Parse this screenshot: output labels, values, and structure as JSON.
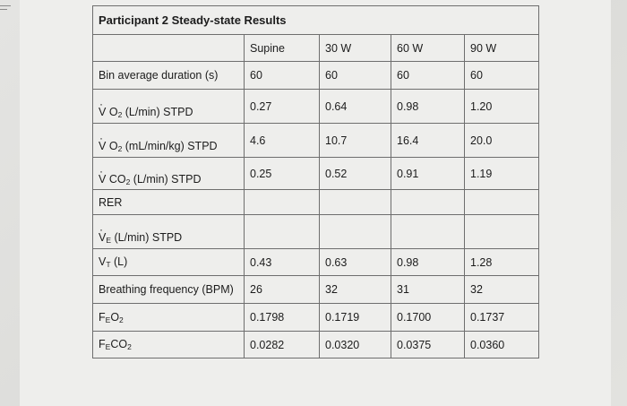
{
  "table": {
    "title": "Participant 2 Steady-state Results",
    "columns": [
      "Supine",
      "30 W",
      "60 W",
      "90 W"
    ],
    "rows": [
      {
        "label": "Bin average duration (s)",
        "values": [
          "60",
          "60",
          "60",
          "60"
        ]
      },
      {
        "label_v": "V",
        "label_gas": "O",
        "label_sub": "2",
        "label_rest": " (L/min) STPD",
        "values": [
          "0.27",
          "0.64",
          "0.98",
          "1.20"
        ]
      },
      {
        "label_v": "V",
        "label_gas": "O",
        "label_sub": "2",
        "label_rest": " (mL/min/kg) STPD",
        "values": [
          "4.6",
          "10.7",
          "16.4",
          "20.0"
        ]
      },
      {
        "label_v": "V",
        "label_gas": "CO",
        "label_sub": "2",
        "label_rest": " (L/min) STPD",
        "values": [
          "0.25",
          "0.52",
          "0.91",
          "1.19"
        ]
      },
      {
        "label": "RER",
        "values": [
          "",
          "",
          "",
          ""
        ]
      },
      {
        "label_v": "V",
        "label_sub": "E",
        "label_rest": " (L/min) STPD",
        "values": [
          "",
          "",
          "",
          ""
        ]
      },
      {
        "label_v": "V",
        "label_sub": "T",
        "label_rest": " (L)",
        "values": [
          "0.43",
          "0.63",
          "0.98",
          "1.28"
        ]
      },
      {
        "label": "Breathing frequency (BPM)",
        "values": [
          "26",
          "32",
          "31",
          "32"
        ]
      },
      {
        "label_v": "F",
        "label_sub": "E",
        "label_gas": "O",
        "label_sub2": "2",
        "values": [
          "0.1798",
          "0.1719",
          "0.1700",
          "0.1737"
        ]
      },
      {
        "label_v": "F",
        "label_sub": "E",
        "label_gas": "CO",
        "label_sub2": "2",
        "values": [
          "0.0282",
          "0.0320",
          "0.0375",
          "0.0360"
        ]
      }
    ]
  }
}
